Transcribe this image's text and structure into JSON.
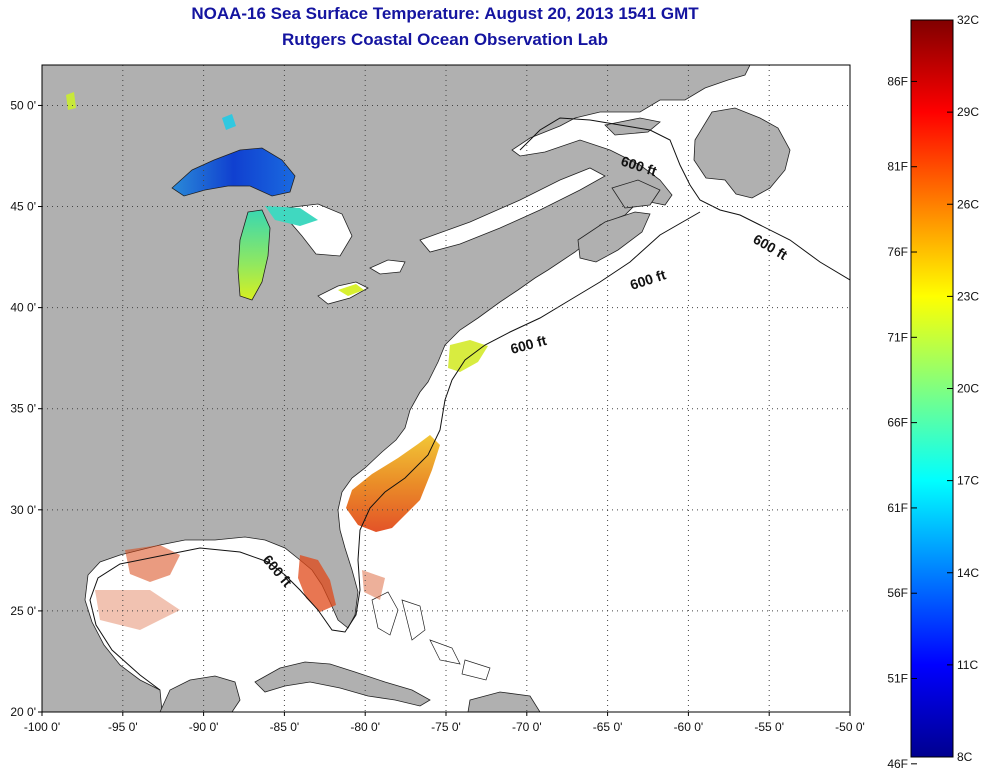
{
  "header": {
    "title": "NOAA-16 Sea Surface Temperature:  August 20, 2013 1541 GMT",
    "subtitle": "Rutgers Coastal Ocean Observation Lab"
  },
  "map": {
    "lon_range": [
      -100,
      -50
    ],
    "lat_range": [
      20,
      52
    ],
    "lon_ticks": [
      "-100 0'",
      "-95 0'",
      "-90 0'",
      "-85 0'",
      "-80 0'",
      "-75 0'",
      "-70 0'",
      "-65 0'",
      "-60 0'",
      "-55 0'",
      "-50 0'"
    ],
    "lat_ticks": [
      "20 0'",
      "25 0'",
      "30 0'",
      "35 0'",
      "40 0'",
      "45 0'",
      "50 0'"
    ],
    "grid": "dotted",
    "land_color": "#b0b0b0",
    "ocean_color": "#ffffff",
    "contour_labels": [
      "600 ft",
      "600 ft",
      "600 ft",
      "600 ft",
      "600 ft"
    ]
  },
  "colorbar": {
    "celsius_labels": [
      "32C",
      "29C",
      "26C",
      "23C",
      "20C",
      "17C",
      "14C",
      "11C",
      "8C"
    ],
    "fahrenheit_labels": [
      "86F",
      "81F",
      "76F",
      "71F",
      "66F",
      "61F",
      "56F",
      "51F",
      "46F"
    ],
    "colormap": "jet",
    "min_c": 8,
    "max_c": 32
  }
}
